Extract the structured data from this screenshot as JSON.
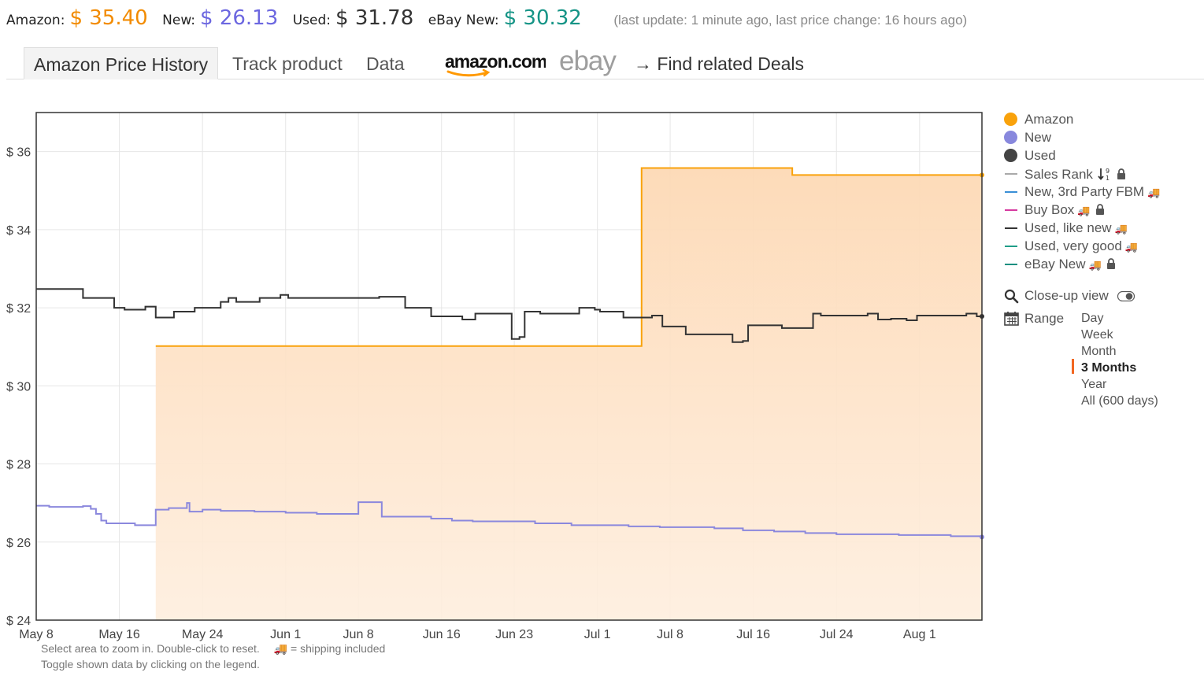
{
  "prices": {
    "amazon_label": "Amazon:",
    "amazon_value": "$ 35.40",
    "new_label": "New:",
    "new_value": "$ 26.13",
    "used_label": "Used:",
    "used_value": "$ 31.78",
    "ebay_label": "eBay New:",
    "ebay_value": "$ 30.32",
    "update_note": "(last update: 1 minute ago,  last price change: 16 hours ago)",
    "colors": {
      "amazon": "#f28b00",
      "new": "#6c67e0",
      "used": "#333333",
      "ebay": "#159486"
    }
  },
  "tabs": {
    "price_history": "Amazon Price History",
    "track": "Track product",
    "data": "Data",
    "amazon_logo": "amazon.com",
    "ebay_logo": "ebay",
    "find_deals": "→ Find related Deals"
  },
  "legend": {
    "items": [
      {
        "label": "Amazon",
        "marker": "dot",
        "color": "#f9a20b",
        "truck": false,
        "lock": false
      },
      {
        "label": "New",
        "marker": "dot",
        "color": "#8888dd",
        "truck": false,
        "lock": false
      },
      {
        "label": "Used",
        "marker": "dot",
        "color": "#444444",
        "truck": false,
        "lock": false
      },
      {
        "label": "Sales Rank",
        "marker": "dash",
        "color": "#aaaaaa",
        "truck": false,
        "lock": true,
        "sort_icon": true
      },
      {
        "label": "New, 3rd Party FBM",
        "marker": "dash",
        "color": "#3a8fd6",
        "truck": true,
        "lock": false
      },
      {
        "label": "Buy Box",
        "marker": "dash",
        "color": "#d63aa0",
        "truck": true,
        "lock": true
      },
      {
        "label": "Used, like new",
        "marker": "dash",
        "color": "#333333",
        "truck": true,
        "lock": false
      },
      {
        "label": "Used, very good",
        "marker": "dash",
        "color": "#1f9e88",
        "truck": true,
        "lock": false
      },
      {
        "label": "eBay New",
        "marker": "dash",
        "color": "#148f80",
        "truck": true,
        "lock": true
      }
    ],
    "closeup_label": "Close-up view",
    "range_label": "Range",
    "range_options": [
      "Day",
      "Week",
      "Month",
      "3 Months",
      "Year",
      "All (600 days)"
    ],
    "range_selected": "3 Months"
  },
  "hints": {
    "line1": "Select area to zoom in. Double-click to reset.",
    "shipping_note": "= shipping included",
    "line2": "Toggle shown data by clicking on the legend."
  },
  "chart_data": {
    "type": "line",
    "ylim": [
      24,
      37
    ],
    "yticks": [
      24,
      26,
      28,
      30,
      32,
      34,
      36
    ],
    "ytick_prefix": "$ ",
    "x_range": [
      "2024-05-08",
      "2024-08-07"
    ],
    "xticks": [
      {
        "date": "2024-05-08",
        "label": "May 8"
      },
      {
        "date": "2024-05-16",
        "label": "May 16"
      },
      {
        "date": "2024-05-24",
        "label": "May 24"
      },
      {
        "date": "2024-06-01",
        "label": "Jun 1"
      },
      {
        "date": "2024-06-08",
        "label": "Jun 8"
      },
      {
        "date": "2024-06-16",
        "label": "Jun 16"
      },
      {
        "date": "2024-06-23",
        "label": "Jun 23"
      },
      {
        "date": "2024-07-01",
        "label": "Jul 1"
      },
      {
        "date": "2024-07-08",
        "label": "Jul 8"
      },
      {
        "date": "2024-07-16",
        "label": "Jul 16"
      },
      {
        "date": "2024-07-24",
        "label": "Jul 24"
      },
      {
        "date": "2024-08-01",
        "label": "Aug 1"
      }
    ],
    "grid": true,
    "series": [
      {
        "name": "Amazon",
        "color": "#f9a20b",
        "fill": true,
        "step": true,
        "points": [
          [
            "2024-05-19T12:00",
            31.02
          ],
          [
            "2024-07-05T06:00",
            35.58
          ],
          [
            "2024-07-19T18:00",
            35.4
          ],
          [
            "2024-08-07T00:00",
            35.4
          ]
        ]
      },
      {
        "name": "Used",
        "color": "#333333",
        "fill": false,
        "step": true,
        "points": [
          [
            "2024-05-08T00:00",
            32.48
          ],
          [
            "2024-05-12T12:00",
            32.25
          ],
          [
            "2024-05-15T12:00",
            32.0
          ],
          [
            "2024-05-16T12:00",
            31.95
          ],
          [
            "2024-05-18T12:00",
            32.03
          ],
          [
            "2024-05-19T12:00",
            31.75
          ],
          [
            "2024-05-21T06:00",
            31.9
          ],
          [
            "2024-05-23T06:00",
            32.0
          ],
          [
            "2024-05-25T18:00",
            32.15
          ],
          [
            "2024-05-26T12:00",
            32.25
          ],
          [
            "2024-05-27T06:00",
            32.15
          ],
          [
            "2024-05-29T12:00",
            32.25
          ],
          [
            "2024-05-31T12:00",
            32.33
          ],
          [
            "2024-06-01T06:00",
            32.25
          ],
          [
            "2024-06-10T00:00",
            32.28
          ],
          [
            "2024-06-12T12:00",
            32.0
          ],
          [
            "2024-06-15T00:00",
            31.78
          ],
          [
            "2024-06-18T00:00",
            31.7
          ],
          [
            "2024-06-19T06:00",
            31.85
          ],
          [
            "2024-06-22T18:00",
            31.2
          ],
          [
            "2024-06-23T12:00",
            31.25
          ],
          [
            "2024-06-24T00:00",
            31.9
          ],
          [
            "2024-06-25T12:00",
            31.85
          ],
          [
            "2024-06-29T06:00",
            32.0
          ],
          [
            "2024-06-30T18:00",
            31.95
          ],
          [
            "2024-07-01T06:00",
            31.9
          ],
          [
            "2024-07-03T12:00",
            31.75
          ],
          [
            "2024-07-06T06:00",
            31.8
          ],
          [
            "2024-07-07T06:00",
            31.52
          ],
          [
            "2024-07-09T12:00",
            31.32
          ],
          [
            "2024-07-14T00:00",
            31.12
          ],
          [
            "2024-07-15T00:00",
            31.15
          ],
          [
            "2024-07-15T12:00",
            31.55
          ],
          [
            "2024-07-18T18:00",
            31.48
          ],
          [
            "2024-07-21T18:00",
            31.85
          ],
          [
            "2024-07-22T12:00",
            31.8
          ],
          [
            "2024-07-27T00:00",
            31.85
          ],
          [
            "2024-07-28T00:00",
            31.7
          ],
          [
            "2024-07-29T06:00",
            31.72
          ],
          [
            "2024-07-30T18:00",
            31.68
          ],
          [
            "2024-07-31T18:00",
            31.8
          ],
          [
            "2024-08-05T12:00",
            31.85
          ],
          [
            "2024-08-06T12:00",
            31.78
          ],
          [
            "2024-08-07T00:00",
            31.78
          ]
        ]
      },
      {
        "name": "New",
        "color": "#8b88dd",
        "fill": false,
        "step": true,
        "points": [
          [
            "2024-05-08T00:00",
            26.93
          ],
          [
            "2024-05-09T06:00",
            26.9
          ],
          [
            "2024-05-12T12:00",
            26.92
          ],
          [
            "2024-05-13T06:00",
            26.85
          ],
          [
            "2024-05-13T18:00",
            26.72
          ],
          [
            "2024-05-14T06:00",
            26.55
          ],
          [
            "2024-05-14T18:00",
            26.48
          ],
          [
            "2024-05-17T12:00",
            26.43
          ],
          [
            "2024-05-19T12:00",
            26.83
          ],
          [
            "2024-05-20T18:00",
            26.87
          ],
          [
            "2024-05-22T12:00",
            27.0
          ],
          [
            "2024-05-22T18:00",
            26.78
          ],
          [
            "2024-05-24T00:00",
            26.83
          ],
          [
            "2024-05-25T18:00",
            26.8
          ],
          [
            "2024-05-29T00:00",
            26.78
          ],
          [
            "2024-06-01T00:00",
            26.75
          ],
          [
            "2024-06-04T00:00",
            26.72
          ],
          [
            "2024-06-08T00:00",
            27.02
          ],
          [
            "2024-06-10T06:00",
            26.65
          ],
          [
            "2024-06-15T00:00",
            26.6
          ],
          [
            "2024-06-17T00:00",
            26.55
          ],
          [
            "2024-06-19T00:00",
            26.53
          ],
          [
            "2024-06-25T00:00",
            26.48
          ],
          [
            "2024-06-28T12:00",
            26.43
          ],
          [
            "2024-07-04T00:00",
            26.4
          ],
          [
            "2024-07-07T00:00",
            26.38
          ],
          [
            "2024-07-12T06:00",
            26.35
          ],
          [
            "2024-07-15T00:00",
            26.3
          ],
          [
            "2024-07-18T00:00",
            26.27
          ],
          [
            "2024-07-21T00:00",
            26.23
          ],
          [
            "2024-07-24T00:00",
            26.2
          ],
          [
            "2024-07-30T00:00",
            26.18
          ],
          [
            "2024-08-04T00:00",
            26.15
          ],
          [
            "2024-08-07T00:00",
            26.13
          ]
        ]
      }
    ]
  }
}
